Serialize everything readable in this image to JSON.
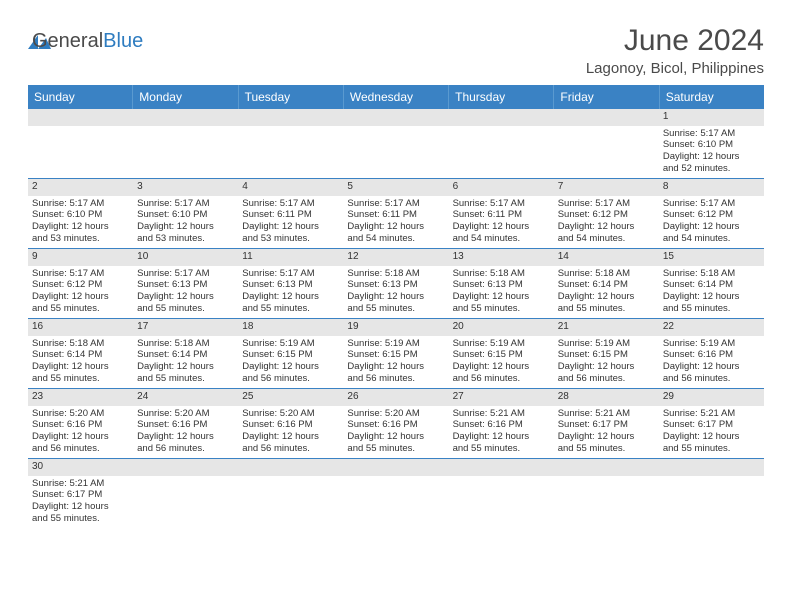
{
  "logo": {
    "textA": "General",
    "textB": "Blue"
  },
  "title": "June 2024",
  "location": "Lagonoy, Bicol, Philippines",
  "colors": {
    "header_bg": "#3a82c4",
    "header_text": "#ffffff",
    "gray_bg": "#e6e6e6",
    "border": "#3a82c4",
    "text": "#333333",
    "page_bg": "#ffffff"
  },
  "fonts": {
    "title_size": 30,
    "location_size": 15,
    "header_size": 12,
    "cell_size": 9.5
  },
  "dayNames": [
    "Sunday",
    "Monday",
    "Tuesday",
    "Wednesday",
    "Thursday",
    "Friday",
    "Saturday"
  ],
  "weeks": [
    [
      null,
      null,
      null,
      null,
      null,
      null,
      {
        "n": "1",
        "sr": "5:17 AM",
        "ss": "6:10 PM",
        "dl": "12 hours and 52 minutes."
      }
    ],
    [
      {
        "n": "2",
        "sr": "5:17 AM",
        "ss": "6:10 PM",
        "dl": "12 hours and 53 minutes."
      },
      {
        "n": "3",
        "sr": "5:17 AM",
        "ss": "6:10 PM",
        "dl": "12 hours and 53 minutes."
      },
      {
        "n": "4",
        "sr": "5:17 AM",
        "ss": "6:11 PM",
        "dl": "12 hours and 53 minutes."
      },
      {
        "n": "5",
        "sr": "5:17 AM",
        "ss": "6:11 PM",
        "dl": "12 hours and 54 minutes."
      },
      {
        "n": "6",
        "sr": "5:17 AM",
        "ss": "6:11 PM",
        "dl": "12 hours and 54 minutes."
      },
      {
        "n": "7",
        "sr": "5:17 AM",
        "ss": "6:12 PM",
        "dl": "12 hours and 54 minutes."
      },
      {
        "n": "8",
        "sr": "5:17 AM",
        "ss": "6:12 PM",
        "dl": "12 hours and 54 minutes."
      }
    ],
    [
      {
        "n": "9",
        "sr": "5:17 AM",
        "ss": "6:12 PM",
        "dl": "12 hours and 55 minutes."
      },
      {
        "n": "10",
        "sr": "5:17 AM",
        "ss": "6:13 PM",
        "dl": "12 hours and 55 minutes."
      },
      {
        "n": "11",
        "sr": "5:17 AM",
        "ss": "6:13 PM",
        "dl": "12 hours and 55 minutes."
      },
      {
        "n": "12",
        "sr": "5:18 AM",
        "ss": "6:13 PM",
        "dl": "12 hours and 55 minutes."
      },
      {
        "n": "13",
        "sr": "5:18 AM",
        "ss": "6:13 PM",
        "dl": "12 hours and 55 minutes."
      },
      {
        "n": "14",
        "sr": "5:18 AM",
        "ss": "6:14 PM",
        "dl": "12 hours and 55 minutes."
      },
      {
        "n": "15",
        "sr": "5:18 AM",
        "ss": "6:14 PM",
        "dl": "12 hours and 55 minutes."
      }
    ],
    [
      {
        "n": "16",
        "sr": "5:18 AM",
        "ss": "6:14 PM",
        "dl": "12 hours and 55 minutes."
      },
      {
        "n": "17",
        "sr": "5:18 AM",
        "ss": "6:14 PM",
        "dl": "12 hours and 55 minutes."
      },
      {
        "n": "18",
        "sr": "5:19 AM",
        "ss": "6:15 PM",
        "dl": "12 hours and 56 minutes."
      },
      {
        "n": "19",
        "sr": "5:19 AM",
        "ss": "6:15 PM",
        "dl": "12 hours and 56 minutes."
      },
      {
        "n": "20",
        "sr": "5:19 AM",
        "ss": "6:15 PM",
        "dl": "12 hours and 56 minutes."
      },
      {
        "n": "21",
        "sr": "5:19 AM",
        "ss": "6:15 PM",
        "dl": "12 hours and 56 minutes."
      },
      {
        "n": "22",
        "sr": "5:19 AM",
        "ss": "6:16 PM",
        "dl": "12 hours and 56 minutes."
      }
    ],
    [
      {
        "n": "23",
        "sr": "5:20 AM",
        "ss": "6:16 PM",
        "dl": "12 hours and 56 minutes."
      },
      {
        "n": "24",
        "sr": "5:20 AM",
        "ss": "6:16 PM",
        "dl": "12 hours and 56 minutes."
      },
      {
        "n": "25",
        "sr": "5:20 AM",
        "ss": "6:16 PM",
        "dl": "12 hours and 56 minutes."
      },
      {
        "n": "26",
        "sr": "5:20 AM",
        "ss": "6:16 PM",
        "dl": "12 hours and 55 minutes."
      },
      {
        "n": "27",
        "sr": "5:21 AM",
        "ss": "6:16 PM",
        "dl": "12 hours and 55 minutes."
      },
      {
        "n": "28",
        "sr": "5:21 AM",
        "ss": "6:17 PM",
        "dl": "12 hours and 55 minutes."
      },
      {
        "n": "29",
        "sr": "5:21 AM",
        "ss": "6:17 PM",
        "dl": "12 hours and 55 minutes."
      }
    ],
    [
      {
        "n": "30",
        "sr": "5:21 AM",
        "ss": "6:17 PM",
        "dl": "12 hours and 55 minutes."
      },
      null,
      null,
      null,
      null,
      null,
      null
    ]
  ],
  "labels": {
    "sunrise": "Sunrise:",
    "sunset": "Sunset:",
    "daylight": "Daylight:"
  }
}
